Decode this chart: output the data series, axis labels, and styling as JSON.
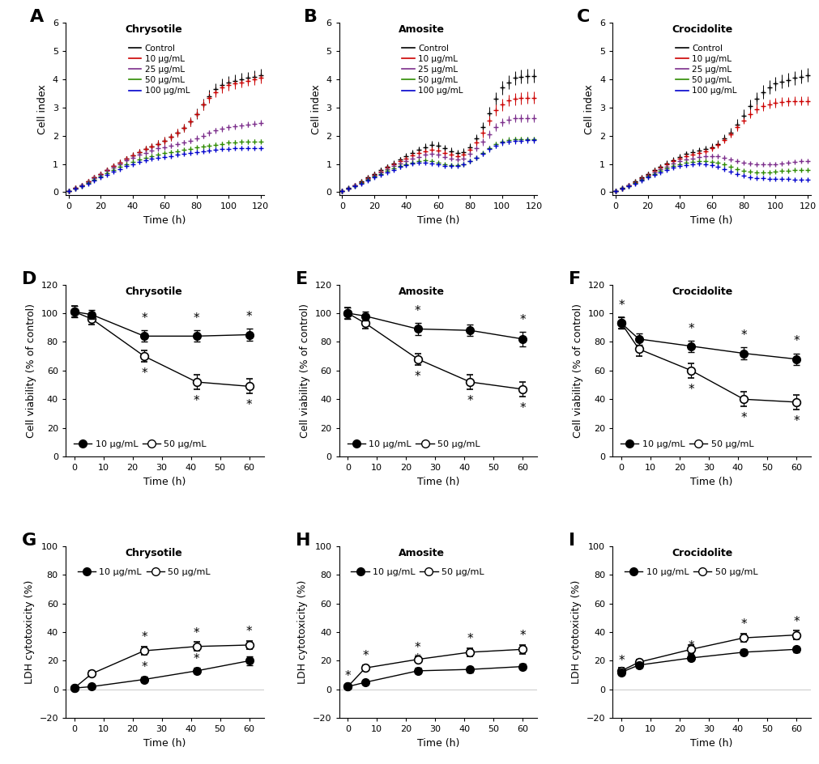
{
  "panel_labels": [
    "A",
    "B",
    "C",
    "D",
    "E",
    "F",
    "G",
    "H",
    "I"
  ],
  "titles_row1": [
    "Chrysotile",
    "Amosite",
    "Crocidolite"
  ],
  "titles_row2": [
    "Chrysotile",
    "Amosite",
    "Crocidolite"
  ],
  "titles_row3": [
    "Chrysotile",
    "Amosite",
    "Crocidolite"
  ],
  "colors_5": [
    "#000000",
    "#cc0000",
    "#7b2d8b",
    "#2e8b00",
    "#0000cc"
  ],
  "legend_labels_5": [
    "Control",
    "10 μg/mL",
    "25 μg/mL",
    "50 μg/mL",
    "100 μg/mL"
  ],
  "legend_labels_2": [
    "10 μg/mL",
    "50 μg/mL"
  ],
  "time_ci": [
    0,
    4,
    8,
    12,
    16,
    20,
    24,
    28,
    32,
    36,
    40,
    44,
    48,
    52,
    56,
    60,
    64,
    68,
    72,
    76,
    80,
    84,
    88,
    92,
    96,
    100,
    104,
    108,
    112,
    116,
    120
  ],
  "A_control": [
    0.05,
    0.15,
    0.25,
    0.38,
    0.52,
    0.65,
    0.78,
    0.92,
    1.05,
    1.18,
    1.3,
    1.42,
    1.53,
    1.62,
    1.72,
    1.82,
    1.95,
    2.1,
    2.28,
    2.5,
    2.78,
    3.1,
    3.4,
    3.65,
    3.8,
    3.9,
    3.95,
    4.0,
    4.05,
    4.1,
    4.15
  ],
  "A_control_err": [
    0.02,
    0.03,
    0.04,
    0.05,
    0.06,
    0.07,
    0.08,
    0.09,
    0.1,
    0.1,
    0.11,
    0.11,
    0.12,
    0.12,
    0.13,
    0.13,
    0.14,
    0.14,
    0.15,
    0.16,
    0.18,
    0.2,
    0.22,
    0.22,
    0.22,
    0.22,
    0.22,
    0.22,
    0.22,
    0.22,
    0.22
  ],
  "A_10": [
    0.05,
    0.15,
    0.25,
    0.38,
    0.52,
    0.65,
    0.78,
    0.92,
    1.05,
    1.18,
    1.3,
    1.42,
    1.53,
    1.62,
    1.72,
    1.82,
    1.95,
    2.1,
    2.28,
    2.5,
    2.78,
    3.1,
    3.35,
    3.55,
    3.7,
    3.8,
    3.85,
    3.9,
    3.95,
    4.0,
    4.05
  ],
  "A_10_err": [
    0.02,
    0.03,
    0.04,
    0.05,
    0.06,
    0.07,
    0.08,
    0.09,
    0.1,
    0.1,
    0.11,
    0.11,
    0.12,
    0.12,
    0.13,
    0.13,
    0.14,
    0.14,
    0.15,
    0.16,
    0.17,
    0.18,
    0.19,
    0.19,
    0.19,
    0.19,
    0.19,
    0.19,
    0.19,
    0.19,
    0.19
  ],
  "A_25": [
    0.05,
    0.14,
    0.24,
    0.36,
    0.5,
    0.63,
    0.75,
    0.88,
    1.0,
    1.12,
    1.22,
    1.32,
    1.4,
    1.48,
    1.55,
    1.6,
    1.65,
    1.7,
    1.76,
    1.83,
    1.92,
    2.0,
    2.1,
    2.18,
    2.25,
    2.3,
    2.33,
    2.36,
    2.4,
    2.43,
    2.46
  ],
  "A_25_err": [
    0.02,
    0.03,
    0.03,
    0.04,
    0.05,
    0.06,
    0.07,
    0.07,
    0.08,
    0.08,
    0.08,
    0.09,
    0.09,
    0.09,
    0.09,
    0.09,
    0.09,
    0.09,
    0.09,
    0.09,
    0.1,
    0.1,
    0.1,
    0.1,
    0.1,
    0.1,
    0.1,
    0.1,
    0.1,
    0.1,
    0.1
  ],
  "A_50": [
    0.05,
    0.13,
    0.22,
    0.33,
    0.45,
    0.57,
    0.68,
    0.79,
    0.9,
    1.0,
    1.08,
    1.15,
    1.22,
    1.28,
    1.33,
    1.38,
    1.42,
    1.46,
    1.5,
    1.54,
    1.58,
    1.62,
    1.65,
    1.68,
    1.72,
    1.75,
    1.77,
    1.78,
    1.79,
    1.8,
    1.8
  ],
  "A_50_err": [
    0.02,
    0.02,
    0.03,
    0.04,
    0.05,
    0.05,
    0.06,
    0.06,
    0.07,
    0.07,
    0.07,
    0.07,
    0.07,
    0.07,
    0.07,
    0.07,
    0.07,
    0.07,
    0.07,
    0.07,
    0.07,
    0.07,
    0.07,
    0.07,
    0.07,
    0.07,
    0.07,
    0.07,
    0.07,
    0.07,
    0.07
  ],
  "A_100": [
    0.05,
    0.13,
    0.21,
    0.31,
    0.42,
    0.53,
    0.63,
    0.73,
    0.83,
    0.92,
    1.0,
    1.07,
    1.13,
    1.18,
    1.22,
    1.26,
    1.29,
    1.32,
    1.35,
    1.38,
    1.41,
    1.44,
    1.47,
    1.5,
    1.52,
    1.54,
    1.55,
    1.56,
    1.57,
    1.57,
    1.57
  ],
  "A_100_err": [
    0.02,
    0.02,
    0.03,
    0.03,
    0.04,
    0.04,
    0.05,
    0.05,
    0.05,
    0.05,
    0.05,
    0.05,
    0.05,
    0.05,
    0.05,
    0.05,
    0.05,
    0.05,
    0.05,
    0.05,
    0.05,
    0.05,
    0.05,
    0.05,
    0.05,
    0.05,
    0.05,
    0.05,
    0.05,
    0.05,
    0.05
  ],
  "B_control": [
    0.05,
    0.15,
    0.25,
    0.38,
    0.52,
    0.65,
    0.78,
    0.9,
    1.03,
    1.15,
    1.28,
    1.4,
    1.5,
    1.6,
    1.68,
    1.65,
    1.55,
    1.45,
    1.38,
    1.42,
    1.6,
    1.9,
    2.3,
    2.8,
    3.3,
    3.7,
    3.9,
    4.05,
    4.1,
    4.12,
    4.13
  ],
  "B_control_err": [
    0.02,
    0.03,
    0.04,
    0.05,
    0.06,
    0.07,
    0.08,
    0.09,
    0.1,
    0.1,
    0.11,
    0.11,
    0.12,
    0.13,
    0.14,
    0.14,
    0.14,
    0.14,
    0.13,
    0.13,
    0.14,
    0.16,
    0.19,
    0.22,
    0.24,
    0.25,
    0.25,
    0.25,
    0.25,
    0.25,
    0.25
  ],
  "B_10": [
    0.05,
    0.14,
    0.24,
    0.36,
    0.5,
    0.62,
    0.74,
    0.86,
    0.98,
    1.1,
    1.2,
    1.3,
    1.38,
    1.45,
    1.5,
    1.47,
    1.4,
    1.32,
    1.28,
    1.32,
    1.5,
    1.75,
    2.1,
    2.55,
    2.9,
    3.1,
    3.25,
    3.3,
    3.33,
    3.35,
    3.35
  ],
  "B_10_err": [
    0.02,
    0.03,
    0.04,
    0.05,
    0.06,
    0.06,
    0.07,
    0.08,
    0.09,
    0.09,
    0.1,
    0.1,
    0.11,
    0.11,
    0.12,
    0.12,
    0.12,
    0.11,
    0.11,
    0.11,
    0.12,
    0.14,
    0.16,
    0.18,
    0.2,
    0.21,
    0.21,
    0.21,
    0.21,
    0.21,
    0.21
  ],
  "B_25": [
    0.05,
    0.14,
    0.23,
    0.34,
    0.47,
    0.59,
    0.7,
    0.81,
    0.92,
    1.02,
    1.11,
    1.19,
    1.26,
    1.32,
    1.35,
    1.32,
    1.26,
    1.2,
    1.16,
    1.2,
    1.35,
    1.55,
    1.78,
    2.05,
    2.3,
    2.48,
    2.57,
    2.62,
    2.63,
    2.63,
    2.62
  ],
  "B_25_err": [
    0.02,
    0.03,
    0.03,
    0.04,
    0.05,
    0.06,
    0.06,
    0.07,
    0.08,
    0.08,
    0.08,
    0.09,
    0.09,
    0.09,
    0.09,
    0.09,
    0.08,
    0.08,
    0.08,
    0.08,
    0.09,
    0.1,
    0.12,
    0.13,
    0.14,
    0.15,
    0.15,
    0.15,
    0.15,
    0.15,
    0.15
  ],
  "B_50": [
    0.05,
    0.13,
    0.22,
    0.32,
    0.44,
    0.55,
    0.65,
    0.75,
    0.84,
    0.93,
    1.0,
    1.06,
    1.1,
    1.12,
    1.1,
    1.05,
    0.99,
    0.95,
    0.95,
    1.0,
    1.1,
    1.22,
    1.38,
    1.55,
    1.7,
    1.8,
    1.85,
    1.87,
    1.87,
    1.87,
    1.87
  ],
  "B_50_err": [
    0.02,
    0.02,
    0.03,
    0.04,
    0.04,
    0.05,
    0.06,
    0.06,
    0.06,
    0.07,
    0.07,
    0.07,
    0.07,
    0.07,
    0.07,
    0.06,
    0.06,
    0.06,
    0.06,
    0.06,
    0.07,
    0.07,
    0.08,
    0.09,
    0.1,
    0.1,
    0.1,
    0.1,
    0.1,
    0.1,
    0.1
  ],
  "B_100": [
    0.05,
    0.13,
    0.21,
    0.31,
    0.42,
    0.52,
    0.62,
    0.71,
    0.8,
    0.89,
    0.96,
    1.01,
    1.04,
    1.05,
    1.03,
    0.99,
    0.94,
    0.92,
    0.94,
    1.0,
    1.1,
    1.22,
    1.36,
    1.52,
    1.65,
    1.75,
    1.8,
    1.82,
    1.83,
    1.84,
    1.84
  ],
  "B_100_err": [
    0.02,
    0.02,
    0.03,
    0.03,
    0.04,
    0.05,
    0.05,
    0.05,
    0.06,
    0.06,
    0.06,
    0.06,
    0.06,
    0.06,
    0.06,
    0.06,
    0.06,
    0.06,
    0.06,
    0.06,
    0.07,
    0.07,
    0.08,
    0.09,
    0.1,
    0.1,
    0.1,
    0.1,
    0.1,
    0.1,
    0.1
  ],
  "C_control": [
    0.05,
    0.15,
    0.25,
    0.38,
    0.52,
    0.65,
    0.78,
    0.9,
    1.02,
    1.14,
    1.26,
    1.35,
    1.42,
    1.48,
    1.53,
    1.6,
    1.72,
    1.9,
    2.12,
    2.4,
    2.72,
    3.05,
    3.3,
    3.55,
    3.72,
    3.85,
    3.92,
    3.98,
    4.05,
    4.1,
    4.15
  ],
  "C_control_err": [
    0.02,
    0.03,
    0.04,
    0.05,
    0.06,
    0.07,
    0.08,
    0.09,
    0.1,
    0.1,
    0.11,
    0.11,
    0.12,
    0.12,
    0.12,
    0.13,
    0.14,
    0.15,
    0.17,
    0.19,
    0.21,
    0.23,
    0.24,
    0.24,
    0.24,
    0.24,
    0.24,
    0.24,
    0.24,
    0.24,
    0.24
  ],
  "C_10": [
    0.05,
    0.14,
    0.24,
    0.36,
    0.5,
    0.63,
    0.75,
    0.87,
    0.99,
    1.1,
    1.19,
    1.27,
    1.34,
    1.4,
    1.45,
    1.55,
    1.68,
    1.85,
    2.05,
    2.3,
    2.55,
    2.78,
    2.95,
    3.05,
    3.12,
    3.17,
    3.2,
    3.22,
    3.23,
    3.23,
    3.23
  ],
  "C_10_err": [
    0.02,
    0.03,
    0.04,
    0.05,
    0.06,
    0.06,
    0.07,
    0.08,
    0.08,
    0.09,
    0.09,
    0.09,
    0.1,
    0.1,
    0.1,
    0.1,
    0.11,
    0.11,
    0.12,
    0.13,
    0.14,
    0.15,
    0.15,
    0.16,
    0.16,
    0.16,
    0.16,
    0.16,
    0.16,
    0.16,
    0.16
  ],
  "C_25": [
    0.05,
    0.14,
    0.23,
    0.34,
    0.47,
    0.59,
    0.7,
    0.81,
    0.91,
    1.01,
    1.09,
    1.15,
    1.2,
    1.24,
    1.27,
    1.28,
    1.27,
    1.23,
    1.17,
    1.1,
    1.05,
    1.02,
    1.0,
    0.99,
    0.99,
    1.0,
    1.02,
    1.05,
    1.07,
    1.09,
    1.1
  ],
  "C_25_err": [
    0.02,
    0.03,
    0.03,
    0.04,
    0.05,
    0.05,
    0.06,
    0.06,
    0.07,
    0.07,
    0.07,
    0.07,
    0.07,
    0.07,
    0.07,
    0.07,
    0.07,
    0.07,
    0.06,
    0.06,
    0.05,
    0.05,
    0.05,
    0.05,
    0.05,
    0.05,
    0.05,
    0.05,
    0.05,
    0.05,
    0.05
  ],
  "C_50": [
    0.05,
    0.13,
    0.22,
    0.32,
    0.44,
    0.55,
    0.65,
    0.75,
    0.84,
    0.92,
    0.99,
    1.04,
    1.08,
    1.1,
    1.1,
    1.08,
    1.04,
    0.98,
    0.9,
    0.82,
    0.76,
    0.72,
    0.7,
    0.7,
    0.71,
    0.73,
    0.75,
    0.77,
    0.78,
    0.79,
    0.8
  ],
  "C_50_err": [
    0.02,
    0.02,
    0.03,
    0.03,
    0.04,
    0.05,
    0.05,
    0.06,
    0.06,
    0.06,
    0.06,
    0.06,
    0.06,
    0.06,
    0.06,
    0.06,
    0.06,
    0.05,
    0.05,
    0.05,
    0.05,
    0.05,
    0.05,
    0.05,
    0.05,
    0.05,
    0.05,
    0.05,
    0.05,
    0.05,
    0.05
  ],
  "C_100": [
    0.05,
    0.13,
    0.21,
    0.31,
    0.42,
    0.52,
    0.62,
    0.71,
    0.8,
    0.87,
    0.93,
    0.97,
    1.0,
    1.01,
    1.0,
    0.96,
    0.9,
    0.82,
    0.73,
    0.64,
    0.58,
    0.54,
    0.51,
    0.49,
    0.48,
    0.47,
    0.46,
    0.46,
    0.45,
    0.45,
    0.45
  ],
  "C_100_err": [
    0.02,
    0.02,
    0.03,
    0.03,
    0.04,
    0.04,
    0.05,
    0.05,
    0.05,
    0.05,
    0.05,
    0.05,
    0.05,
    0.05,
    0.05,
    0.05,
    0.05,
    0.05,
    0.04,
    0.04,
    0.04,
    0.04,
    0.04,
    0.04,
    0.04,
    0.04,
    0.04,
    0.04,
    0.04,
    0.04,
    0.04
  ],
  "time_vl": [
    0,
    6,
    24,
    42,
    60
  ],
  "D_10_y": [
    101,
    99,
    84,
    84,
    85
  ],
  "D_10_err": [
    4,
    3,
    4,
    4,
    4
  ],
  "D_50_y": [
    101,
    96,
    70,
    52,
    49
  ],
  "D_50_err": [
    4,
    4,
    4,
    5,
    5
  ],
  "D_stars_10": [
    false,
    false,
    true,
    true,
    true
  ],
  "D_stars_50": [
    false,
    false,
    true,
    true,
    true
  ],
  "E_10_y": [
    100,
    98,
    89,
    88,
    82
  ],
  "E_10_err": [
    4,
    3,
    4,
    4,
    5
  ],
  "E_50_y": [
    100,
    93,
    68,
    52,
    47
  ],
  "E_50_err": [
    4,
    4,
    4,
    5,
    5
  ],
  "E_stars_10": [
    false,
    false,
    true,
    false,
    true
  ],
  "E_stars_50": [
    false,
    false,
    true,
    true,
    true
  ],
  "F_10_y": [
    93,
    82,
    77,
    72,
    68
  ],
  "F_10_err": [
    4,
    4,
    4,
    4,
    4
  ],
  "F_50_y": [
    93,
    75,
    60,
    40,
    38
  ],
  "F_50_err": [
    4,
    5,
    5,
    5,
    5
  ],
  "F_stars_10": [
    true,
    false,
    true,
    true,
    true
  ],
  "F_stars_50": [
    false,
    false,
    true,
    true,
    true
  ],
  "G_10_y": [
    1,
    2,
    7,
    13,
    20
  ],
  "G_10_err": [
    1,
    1,
    2,
    2,
    3
  ],
  "G_50_y": [
    1,
    11,
    27,
    30,
    31
  ],
  "G_50_err": [
    1,
    2,
    3,
    3,
    3
  ],
  "G_stars_10": [
    false,
    false,
    true,
    true,
    true
  ],
  "G_stars_50": [
    false,
    false,
    true,
    true,
    true
  ],
  "H_10_y": [
    2,
    5,
    13,
    14,
    16
  ],
  "H_10_err": [
    1,
    1,
    2,
    2,
    2
  ],
  "H_50_y": [
    2,
    15,
    21,
    26,
    28
  ],
  "H_50_err": [
    1,
    2,
    2,
    3,
    3
  ],
  "H_stars_10": [
    false,
    false,
    true,
    true,
    true
  ],
  "H_stars_50": [
    true,
    true,
    true,
    true,
    true
  ],
  "I_10_y": [
    12,
    17,
    22,
    26,
    28
  ],
  "I_10_err": [
    2,
    2,
    2,
    2,
    2
  ],
  "I_50_y": [
    13,
    19,
    28,
    36,
    38
  ],
  "I_50_err": [
    2,
    2,
    3,
    3,
    3
  ],
  "I_stars_10": [
    true,
    false,
    true,
    true,
    true
  ],
  "I_stars_50": [
    false,
    false,
    false,
    true,
    true
  ],
  "ylabel_ci": "Cell index",
  "xlabel_ci": "Time (h)",
  "ylabel_vl": "Cell viability (% of control)",
  "ylabel_ldh": "LDH cytotoxicity (%)",
  "xlabel_vl": "Time (h)",
  "bg_color": "#ffffff"
}
